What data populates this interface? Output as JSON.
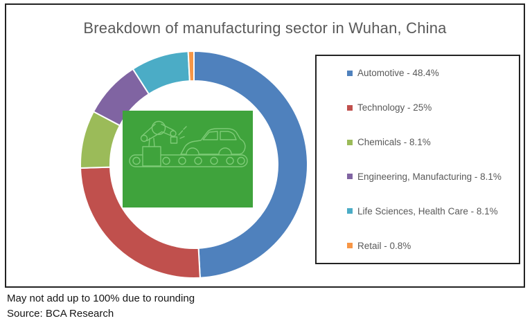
{
  "title": "Breakdown of manufacturing sector in Wuhan, China",
  "chart_data": {
    "type": "pie",
    "subtype": "donut",
    "title": "Breakdown of manufacturing sector in Wuhan, China",
    "categories": [
      "Automotive",
      "Technology",
      "Chemicals",
      "Engineering, Manufacturing",
      "Life Sciences, Health Care",
      "Retail"
    ],
    "values": [
      48.4,
      25,
      8.1,
      8.1,
      8.1,
      0.8
    ],
    "unit": "%",
    "colors": [
      "#4F81BD",
      "#C0504D",
      "#9BBB59",
      "#8064A2",
      "#4BACC6",
      "#F79646"
    ],
    "start_angle_deg": 0,
    "direction": "clockwise",
    "legend_position": "right",
    "center_image": "car-assembly-line-illustration",
    "note": "May not add up to 100% due to rounding"
  },
  "legend": {
    "items": [
      {
        "label": "Automotive - 48.4%",
        "color": "#4F81BD"
      },
      {
        "label": "Technology - 25%",
        "color": "#C0504D"
      },
      {
        "label": "Chemicals - 8.1%",
        "color": "#9BBB59"
      },
      {
        "label": "Engineering, Manufacturing - 8.1%",
        "color": "#8064A2"
      },
      {
        "label": "Life Sciences, Health Care - 8.1%",
        "color": "#4BACC6"
      },
      {
        "label": "Retail - 0.8%",
        "color": "#F79646"
      }
    ]
  },
  "footnotes": {
    "rounding": "May not add up to 100% due to rounding",
    "source": "Source: BCA Research"
  }
}
